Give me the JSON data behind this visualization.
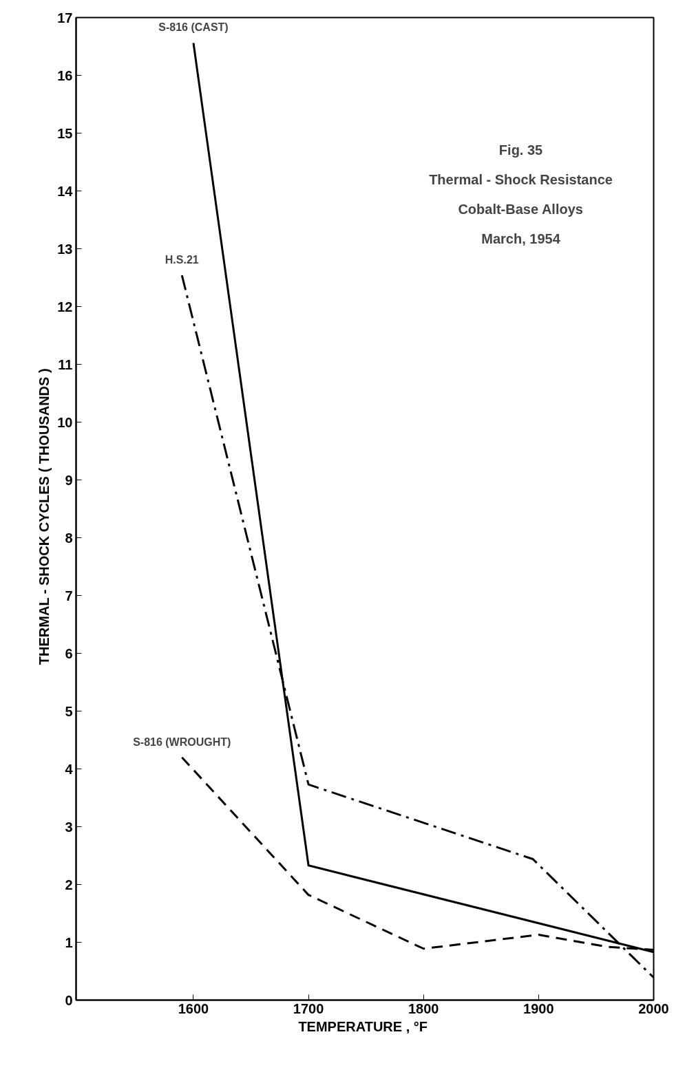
{
  "chart_data": {
    "type": "line",
    "title": "Fig. 35",
    "annotations": [
      "Thermal - Shock Resistance",
      "Cobalt-Base Alloys",
      "March, 1954"
    ],
    "xlabel": "TEMPERATURE ,  °F",
    "ylabel": "THERMAL - SHOCK   CYCLES   ( THOUSANDS )",
    "xlim": [
      1498,
      2000
    ],
    "ylim": [
      0,
      17
    ],
    "xticks": [
      1600,
      1700,
      1800,
      1900,
      2000
    ],
    "yticks": [
      0,
      1,
      2,
      3,
      4,
      5,
      6,
      7,
      8,
      9,
      10,
      11,
      12,
      13,
      14,
      15,
      16,
      17
    ],
    "grid": false,
    "marker": "none",
    "series": [
      {
        "name": "S-816 (CAST)",
        "color": "#000000",
        "line_style": "solid",
        "x": [
          1600,
          1700,
          2000
        ],
        "values": [
          16.56,
          2.33,
          0.83
        ]
      },
      {
        "name": "H.S.21",
        "color": "#000000",
        "line_style": "dashdot",
        "x": [
          1590,
          1700,
          1895,
          2000
        ],
        "values": [
          12.54,
          3.73,
          2.44,
          0.39
        ]
      },
      {
        "name": "S-816 (WROUGHT)",
        "color": "#000000",
        "line_style": "dashed",
        "x": [
          1590,
          1700,
          1800,
          1900,
          1960,
          2000
        ],
        "values": [
          4.2,
          1.82,
          0.89,
          1.13,
          0.92,
          0.87
        ]
      }
    ]
  }
}
